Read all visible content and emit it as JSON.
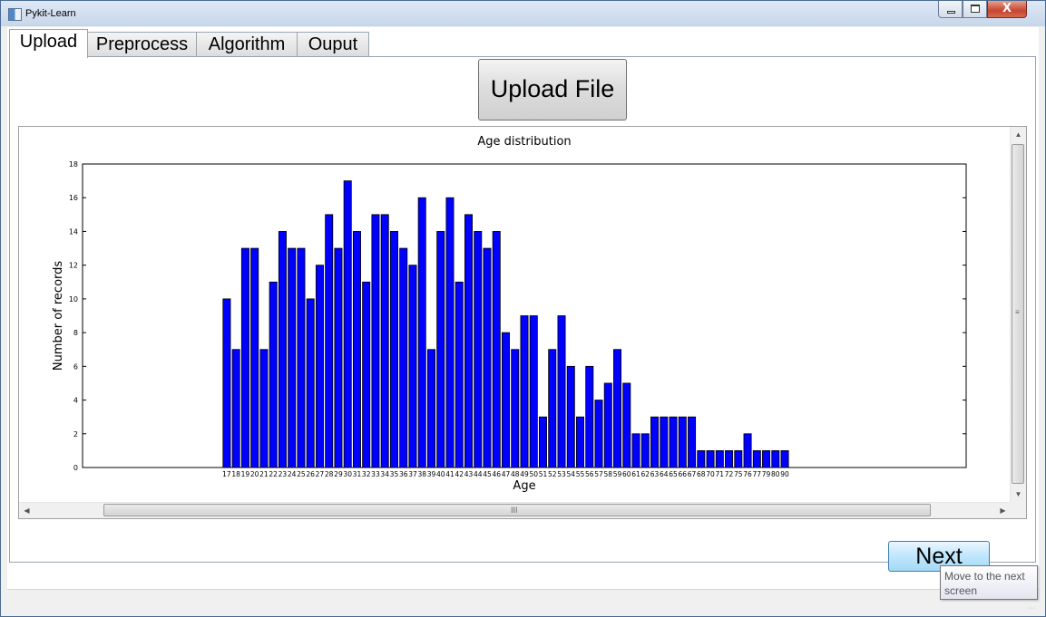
{
  "window": {
    "title": "Pykit-Learn",
    "minimize_glyph": "—",
    "close_glyph": "X"
  },
  "tabs": [
    {
      "label": "Upload",
      "active": true
    },
    {
      "label": "Preprocess",
      "active": false
    },
    {
      "label": "Algorithm",
      "active": false
    },
    {
      "label": "Ouput",
      "active": false
    }
  ],
  "upload": {
    "button_label": "Upload File"
  },
  "icons": {
    "up": "▲",
    "down": "▼",
    "left": "◀",
    "right": "▶",
    "grip_v": "≡",
    "grip_h": "III"
  },
  "chart_data": {
    "type": "bar",
    "title": "Age distribution",
    "xlabel": "Age",
    "ylabel": "Number of records",
    "bar_color": "#0000ff",
    "ylim": [
      0,
      18
    ],
    "yticks": [
      0,
      2,
      4,
      6,
      8,
      10,
      12,
      14,
      16,
      18
    ],
    "xlim": [
      0,
      95
    ],
    "grid": false,
    "legend": "none",
    "categories": [
      17,
      18,
      19,
      20,
      21,
      22,
      23,
      24,
      25,
      26,
      27,
      28,
      29,
      30,
      31,
      32,
      33,
      34,
      35,
      36,
      37,
      38,
      39,
      40,
      41,
      42,
      43,
      44,
      45,
      46,
      47,
      48,
      49,
      50,
      51,
      52,
      53,
      54,
      55,
      56,
      57,
      58,
      59,
      60,
      61,
      62,
      63,
      64,
      65,
      66,
      67,
      68,
      70,
      71,
      72,
      75,
      76,
      77,
      79,
      80,
      90
    ],
    "values": [
      10,
      7,
      13,
      13,
      7,
      11,
      14,
      13,
      13,
      10,
      12,
      15,
      13,
      17,
      14,
      11,
      15,
      15,
      14,
      13,
      12,
      16,
      7,
      14,
      16,
      11,
      15,
      14,
      13,
      14,
      8,
      7,
      9,
      9,
      3,
      7,
      9,
      6,
      3,
      6,
      4,
      5,
      7,
      5,
      2,
      2,
      3,
      3,
      3,
      3,
      3,
      1,
      1,
      1,
      1,
      1,
      2,
      1,
      1,
      1,
      1
    ]
  },
  "next": {
    "button_label": "Next",
    "tooltip": "Move to the next screen"
  }
}
